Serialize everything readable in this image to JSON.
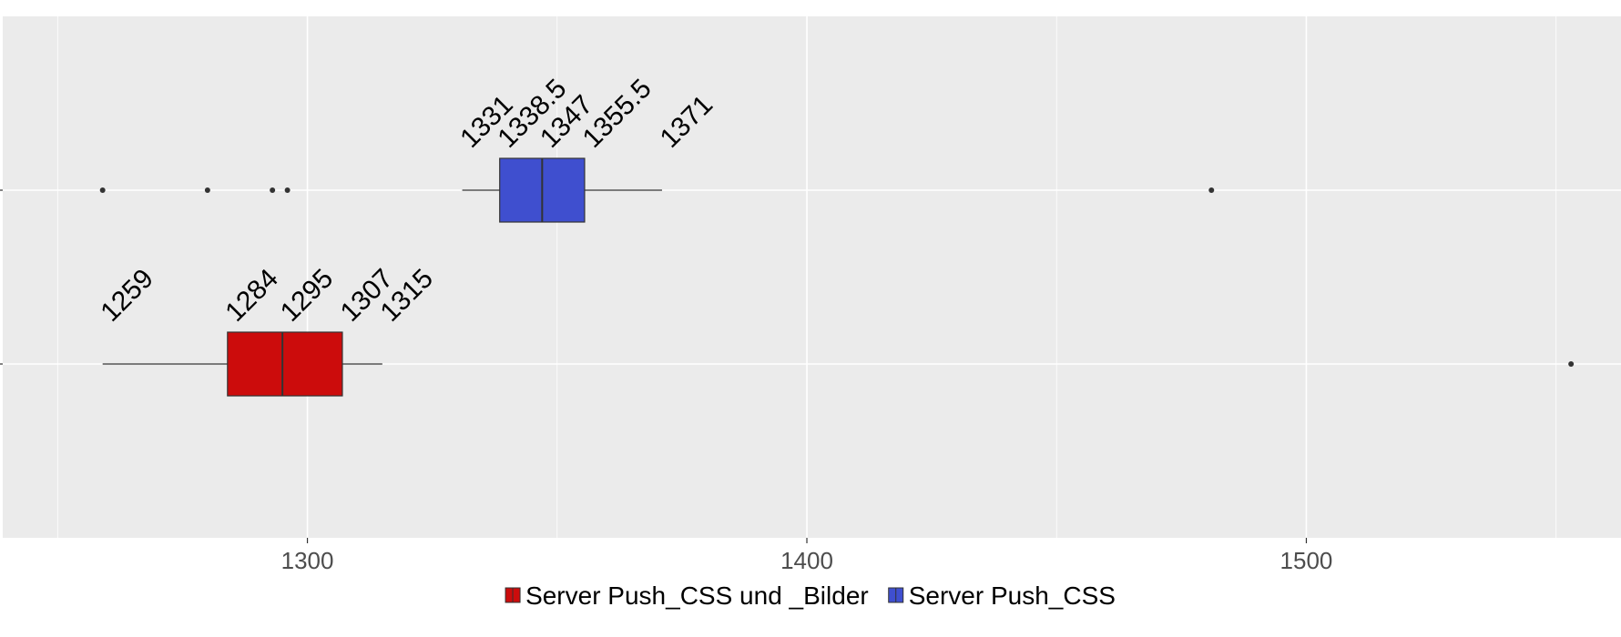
{
  "chart_data": {
    "type": "boxplot",
    "orientation": "horizontal",
    "title": "",
    "xlabel": "",
    "ylabel": "",
    "xlim": [
      1239,
      1563
    ],
    "x_ticks": [
      1300,
      1400,
      1500
    ],
    "x_minor_ticks": [
      1250,
      1350,
      1450,
      1550
    ],
    "grid": true,
    "legend_position": "bottom",
    "series": [
      {
        "name": "Server Push_CSS und _Bilder",
        "color": "#cc0c0c",
        "whisker_low": 1259,
        "q1": 1284,
        "median": 1295,
        "q3": 1307,
        "whisker_high": 1315,
        "outliers": [
          1553
        ],
        "labels": [
          "1259",
          "1284",
          "1295",
          "1307",
          "1315"
        ]
      },
      {
        "name": "Server Push_CSS",
        "color": "#3f4fcf",
        "whisker_low": 1331,
        "q1": 1338.5,
        "median": 1347,
        "q3": 1355.5,
        "whisker_high": 1371,
        "outliers": [
          1259,
          1280,
          1293,
          1296,
          1481
        ],
        "labels": [
          "1331",
          "1338.5",
          "1347",
          "1355.5",
          "1371"
        ]
      }
    ]
  }
}
